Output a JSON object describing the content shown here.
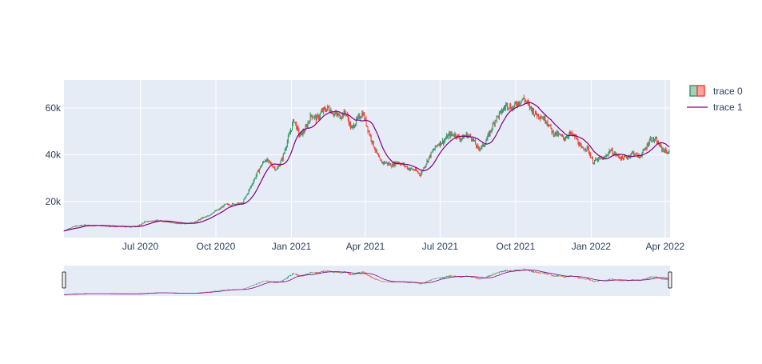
{
  "chart_data": {
    "type": "candlestick",
    "title": "",
    "xlabel": "",
    "ylabel": "",
    "x_tick_labels": [
      "Jul 2020",
      "Oct 2020",
      "Jan 2021",
      "Apr 2021",
      "Jul 2021",
      "Oct 2021",
      "Jan 2022",
      "Apr 2022"
    ],
    "y_tick_values": [
      20000,
      40000,
      60000
    ],
    "y_tick_labels": [
      "20k",
      "40k",
      "60k"
    ],
    "ylim": [
      4500,
      72000
    ],
    "grid": true,
    "legend_position": "top-right",
    "rangeslider": true,
    "colors": {
      "increasing": "#3d9970",
      "decreasing": "#ff4136",
      "ma_line": "#800080",
      "plot_bg": "#e5ecf6",
      "grid": "#ffffff",
      "text": "#2a3f5f"
    },
    "series": [
      {
        "name": "trace 0",
        "kind": "candlestick",
        "weekly_close": [
          [
            0,
            7400
          ],
          [
            7,
            8600
          ],
          [
            14,
            9400
          ],
          [
            21,
            9700
          ],
          [
            28,
            9900
          ],
          [
            35,
            9500
          ],
          [
            42,
            9800
          ],
          [
            49,
            9600
          ],
          [
            56,
            9300
          ],
          [
            63,
            9200
          ],
          [
            70,
            9300
          ],
          [
            77,
            9200
          ],
          [
            84,
            9200
          ],
          [
            91,
            9600
          ],
          [
            98,
            11200
          ],
          [
            105,
            11600
          ],
          [
            112,
            11800
          ],
          [
            119,
            11600
          ],
          [
            126,
            11300
          ],
          [
            133,
            10700
          ],
          [
            140,
            10500
          ],
          [
            147,
            10700
          ],
          [
            154,
            10700
          ],
          [
            161,
            11300
          ],
          [
            168,
            12900
          ],
          [
            175,
            13600
          ],
          [
            182,
            15500
          ],
          [
            189,
            16600
          ],
          [
            196,
            18600
          ],
          [
            203,
            18700
          ],
          [
            210,
            19000
          ],
          [
            217,
            19100
          ],
          [
            224,
            23800
          ],
          [
            231,
            29000
          ],
          [
            238,
            34000
          ],
          [
            245,
            38000
          ],
          [
            252,
            36000
          ],
          [
            259,
            33500
          ],
          [
            266,
            38500
          ],
          [
            273,
            47000
          ],
          [
            280,
            55000
          ],
          [
            287,
            48000
          ],
          [
            294,
            51000
          ],
          [
            301,
            57000
          ],
          [
            308,
            55500
          ],
          [
            315,
            58800
          ],
          [
            322,
            60000
          ],
          [
            329,
            57500
          ],
          [
            336,
            56500
          ],
          [
            343,
            58200
          ],
          [
            350,
            51000
          ],
          [
            357,
            55000
          ],
          [
            364,
            58000
          ],
          [
            371,
            50000
          ],
          [
            378,
            43000
          ],
          [
            385,
            37000
          ],
          [
            392,
            36500
          ],
          [
            399,
            35500
          ],
          [
            406,
            37000
          ],
          [
            413,
            35700
          ],
          [
            420,
            34000
          ],
          [
            427,
            33500
          ],
          [
            434,
            31500
          ],
          [
            441,
            36500
          ],
          [
            448,
            41000
          ],
          [
            455,
            44500
          ],
          [
            462,
            45800
          ],
          [
            469,
            48500
          ],
          [
            476,
            48700
          ],
          [
            483,
            46800
          ],
          [
            490,
            48500
          ],
          [
            497,
            47200
          ],
          [
            504,
            42500
          ],
          [
            511,
            44000
          ],
          [
            518,
            49000
          ],
          [
            525,
            55000
          ],
          [
            532,
            58000
          ],
          [
            539,
            61500
          ],
          [
            546,
            60000
          ],
          [
            553,
            62500
          ],
          [
            560,
            64000
          ],
          [
            567,
            60500
          ],
          [
            574,
            57500
          ],
          [
            581,
            56500
          ],
          [
            588,
            54500
          ],
          [
            595,
            49500
          ],
          [
            602,
            48500
          ],
          [
            609,
            47000
          ],
          [
            616,
            49000
          ],
          [
            623,
            47500
          ],
          [
            630,
            42500
          ],
          [
            637,
            43000
          ],
          [
            644,
            37000
          ],
          [
            651,
            38000
          ],
          [
            658,
            38500
          ],
          [
            665,
            42000
          ],
          [
            672,
            40000
          ],
          [
            679,
            38500
          ],
          [
            686,
            39000
          ],
          [
            693,
            41000
          ],
          [
            700,
            39000
          ],
          [
            707,
            42000
          ],
          [
            714,
            46800
          ],
          [
            721,
            46000
          ],
          [
            728,
            42500
          ],
          [
            735,
            41000
          ]
        ]
      },
      {
        "name": "trace 1",
        "kind": "line"
      }
    ]
  }
}
